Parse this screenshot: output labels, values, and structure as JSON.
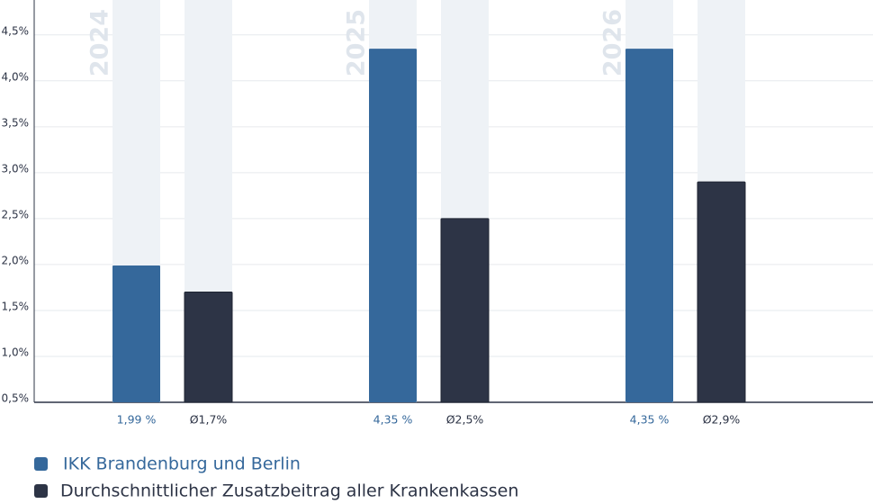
{
  "chart_data": {
    "type": "bar",
    "categories": [
      "2024",
      "2025",
      "2026"
    ],
    "series": [
      {
        "name": "IKK Brandenburg und Berlin",
        "color": "#35689b",
        "values": [
          1.99,
          4.35,
          4.35
        ],
        "value_labels": [
          "1,99 %",
          "4,35 %",
          "4,35 %"
        ]
      },
      {
        "name": "Durchschnittlicher Zusatzbeitrag aller Krankenkassen",
        "color": "#2d3446",
        "values": [
          1.7,
          2.5,
          2.9
        ],
        "value_labels": [
          "Ø1,7%",
          "Ø2,5%",
          "Ø2,9%"
        ]
      }
    ],
    "ylim": [
      0.5,
      4.88
    ],
    "yticks": [
      {
        "value": 0.5,
        "label": "0,5%"
      },
      {
        "value": 1.0,
        "label": "1,0%"
      },
      {
        "value": 1.5,
        "label": "1,5%"
      },
      {
        "value": 2.0,
        "label": "2,0%"
      },
      {
        "value": 2.5,
        "label": "2,5%"
      },
      {
        "value": 3.0,
        "label": "3,0%"
      },
      {
        "value": 3.5,
        "label": "3,5%"
      },
      {
        "value": 4.0,
        "label": "4,0%"
      },
      {
        "value": 4.5,
        "label": "4,5%"
      }
    ],
    "grid": true
  }
}
